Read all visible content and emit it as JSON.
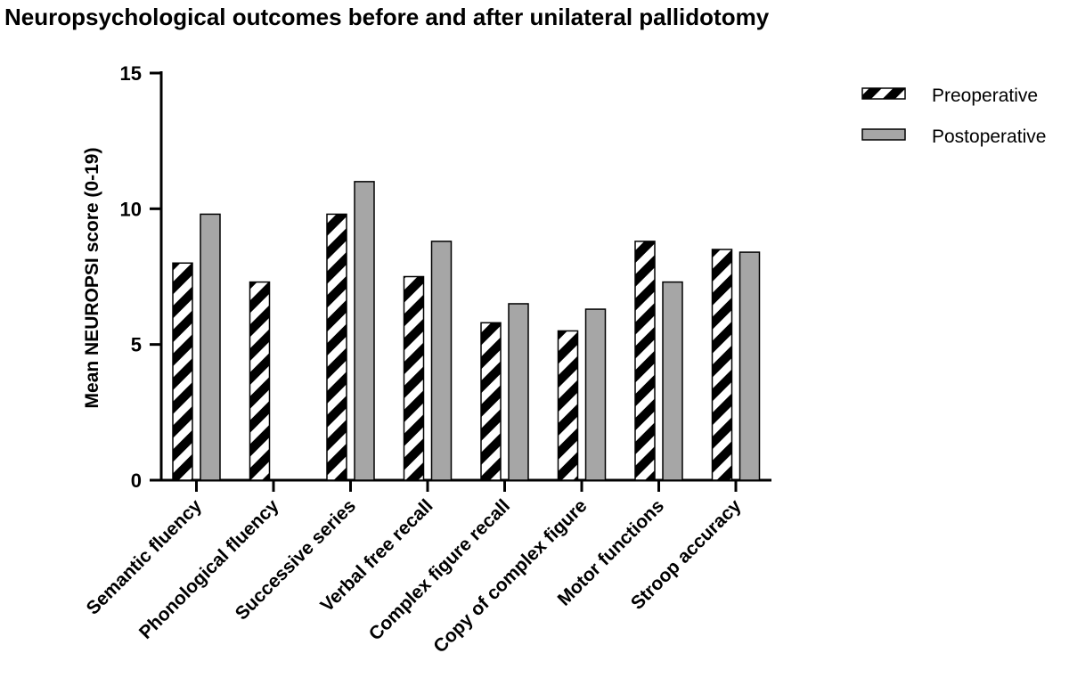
{
  "chart_data": {
    "type": "bar",
    "title": "Neuropsychological outcomes before and after unilateral pallidotomy",
    "xlabel": "",
    "ylabel": "Mean NEUROPSI score (0-19)",
    "ylim": [
      0,
      15
    ],
    "yticks": [
      "0",
      "5",
      "10",
      "15"
    ],
    "grid": false,
    "legend_position": "top-right",
    "categories": [
      "Semantic fluency",
      "Phonological fluency",
      "Successive series",
      "Verbal free recall",
      "Complex figure recall",
      "Copy of complex figure",
      "Motor functions",
      "Stroop accuracy"
    ],
    "series": [
      {
        "name": "Preoperative",
        "pattern": "diagonal-stripes",
        "color": "#000000",
        "background": "#ffffff",
        "values": [
          8.0,
          7.3,
          9.8,
          7.5,
          5.8,
          5.5,
          8.8,
          8.5
        ]
      },
      {
        "name": "Postoperative",
        "pattern": "solid",
        "color": "#a6a6a6",
        "values": [
          9.8,
          null,
          11.0,
          8.8,
          6.5,
          6.3,
          7.3,
          8.4
        ]
      }
    ]
  }
}
